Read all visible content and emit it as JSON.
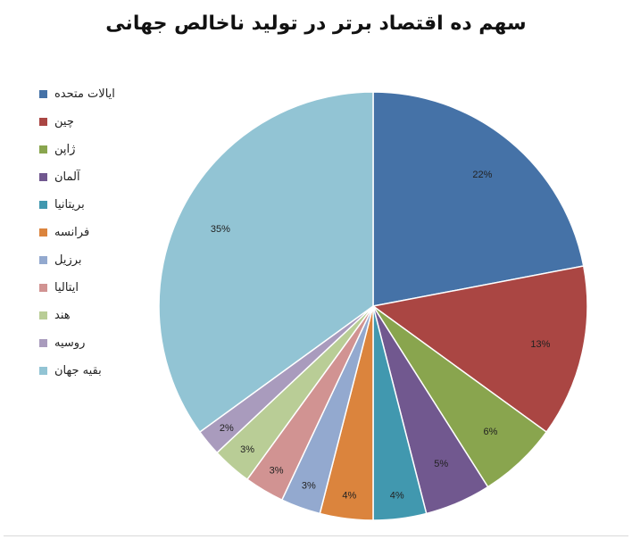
{
  "chart_data": {
    "type": "pie",
    "title": "سهم ده اقتصاد برتر در تولید ناخالص جهانی",
    "categories": [
      "ایالات متحده",
      "چین",
      "ژاپن",
      "آلمان",
      "بریتانیا",
      "فرانسه",
      "برزیل",
      "ایتالیا",
      "هند",
      "روسیه",
      "بقیه جهان"
    ],
    "values": [
      22,
      13,
      6,
      5,
      4,
      4,
      3,
      3,
      3,
      2,
      35
    ],
    "labels": [
      "22%",
      "13%",
      "6%",
      "5%",
      "4%",
      "4%",
      "3%",
      "3%",
      "3%",
      "2%",
      "35%"
    ],
    "colors": [
      "#4572a7",
      "#aa4643",
      "#89a54e",
      "#71588f",
      "#4198af",
      "#db843d",
      "#93a9cf",
      "#d19392",
      "#b9cd96",
      "#a99bbd",
      "#92c4d4"
    ],
    "legend_position": "left",
    "start_angle": "12 o'clock, clockwise"
  }
}
